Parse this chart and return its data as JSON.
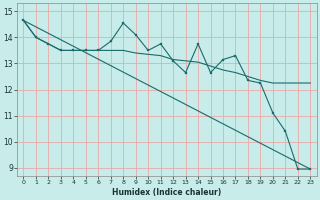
{
  "xlabel": "Humidex (Indice chaleur)",
  "background_color": "#c8ecea",
  "grid_color": "#e8aaaa",
  "line_color": "#1a6b6b",
  "xlim": [
    -0.5,
    23.5
  ],
  "ylim": [
    8.7,
    15.3
  ],
  "yticks": [
    9,
    10,
    11,
    12,
    13,
    14,
    15
  ],
  "xticks": [
    0,
    1,
    2,
    3,
    4,
    5,
    6,
    7,
    8,
    9,
    10,
    11,
    12,
    13,
    14,
    15,
    16,
    17,
    18,
    19,
    20,
    21,
    22,
    23
  ],
  "series1_x": [
    0,
    1,
    2,
    3,
    4,
    5,
    6,
    7,
    8,
    9,
    10,
    11,
    12,
    13,
    14,
    15,
    16,
    17,
    18,
    19,
    20,
    21,
    22,
    23
  ],
  "series1_y": [
    14.65,
    14.0,
    13.75,
    13.5,
    13.5,
    13.5,
    13.5,
    13.5,
    13.5,
    13.4,
    13.35,
    13.3,
    13.15,
    13.1,
    13.05,
    12.9,
    12.75,
    12.65,
    12.5,
    12.35,
    12.25,
    12.25,
    12.25,
    12.25
  ],
  "series2_x": [
    0,
    1,
    2,
    3,
    4,
    5,
    6,
    7,
    8,
    9,
    10,
    11,
    12,
    13,
    14,
    15,
    16,
    17,
    18,
    19,
    20,
    21,
    22,
    23
  ],
  "series2_y": [
    14.65,
    14.0,
    13.75,
    13.5,
    13.5,
    13.5,
    13.5,
    13.85,
    14.55,
    14.1,
    13.5,
    13.75,
    13.1,
    12.65,
    13.75,
    12.65,
    13.15,
    13.3,
    12.35,
    12.25,
    11.1,
    10.4,
    8.95,
    8.95
  ],
  "series3_x": [
    0,
    23
  ],
  "series3_y": [
    14.65,
    8.95
  ]
}
